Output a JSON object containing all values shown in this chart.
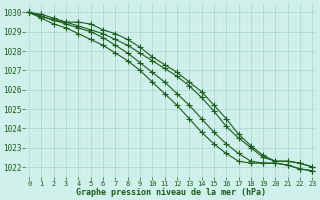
{
  "x": [
    0,
    1,
    2,
    3,
    4,
    5,
    6,
    7,
    8,
    9,
    10,
    11,
    12,
    13,
    14,
    15,
    16,
    17,
    18,
    19,
    20,
    21,
    22,
    23
  ],
  "series": [
    [
      1030.0,
      1029.8,
      1029.6,
      1029.5,
      1029.3,
      1029.1,
      1028.9,
      1028.6,
      1028.3,
      1027.9,
      1027.5,
      1027.1,
      1026.7,
      1026.2,
      1025.6,
      1024.9,
      1024.1,
      1023.5,
      1023.0,
      1022.5,
      1022.3,
      1022.3,
      1022.2,
      1022.0
    ],
    [
      1030.0,
      1029.9,
      1029.7,
      1029.5,
      1029.5,
      1029.4,
      1029.1,
      1028.9,
      1028.6,
      1028.2,
      1027.7,
      1027.3,
      1026.9,
      1026.4,
      1025.9,
      1025.2,
      1024.5,
      1023.7,
      1023.1,
      1022.6,
      1022.3,
      1022.3,
      1022.2,
      1022.0
    ],
    [
      1030.0,
      1029.8,
      1029.6,
      1029.4,
      1029.2,
      1029.0,
      1028.7,
      1028.3,
      1027.9,
      1027.4,
      1026.9,
      1026.4,
      1025.8,
      1025.2,
      1024.5,
      1023.8,
      1023.2,
      1022.7,
      1022.3,
      1022.2,
      1022.2,
      1022.1,
      1021.9,
      1021.8
    ],
    [
      1030.0,
      1029.7,
      1029.4,
      1029.2,
      1028.9,
      1028.6,
      1028.3,
      1027.9,
      1027.5,
      1027.0,
      1026.4,
      1025.8,
      1025.2,
      1024.5,
      1023.8,
      1023.2,
      1022.7,
      1022.3,
      1022.2,
      1022.2,
      1022.2,
      1022.1,
      1021.9,
      1021.8
    ]
  ],
  "line_color": "#1a5c1a",
  "marker": "+",
  "markersize": 4,
  "markeredgewidth": 0.8,
  "bg_color": "#cff0eb",
  "grid_color": "#aad4cc",
  "grid_minor_color": "#c8e8e4",
  "xlabel": "Graphe pression niveau de la mer (hPa)",
  "xlabel_color": "#1a5c1a",
  "tick_color": "#1a5c1a",
  "ylim": [
    1021.5,
    1030.5
  ],
  "yticks": [
    1022,
    1023,
    1024,
    1025,
    1026,
    1027,
    1028,
    1029,
    1030
  ],
  "xticks": [
    0,
    1,
    2,
    3,
    4,
    5,
    6,
    7,
    8,
    9,
    10,
    11,
    12,
    13,
    14,
    15,
    16,
    17,
    18,
    19,
    20,
    21,
    22,
    23
  ],
  "xlim": [
    -0.3,
    23.3
  ],
  "linewidth": 0.8
}
